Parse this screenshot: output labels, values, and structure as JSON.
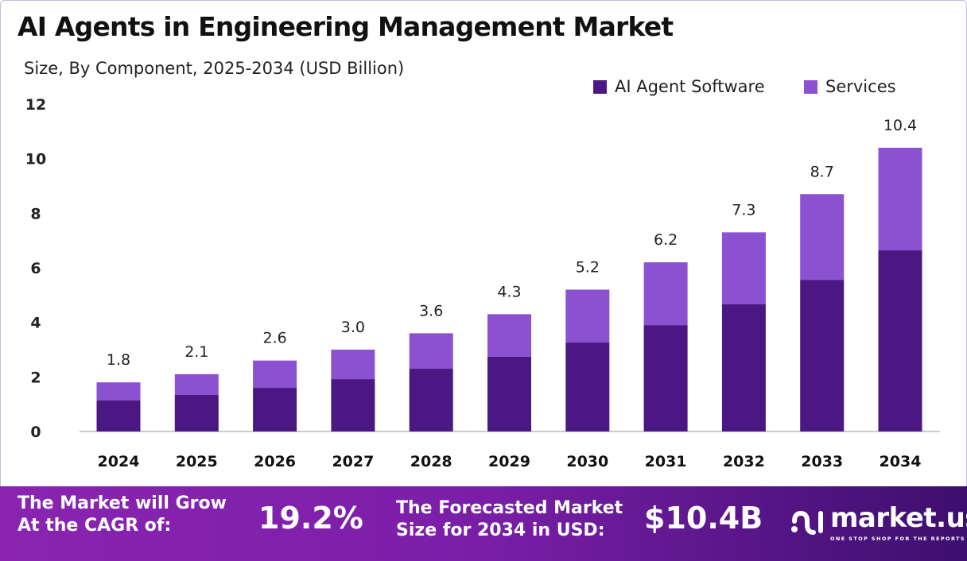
{
  "title": "AI Agents in Engineering Management Market",
  "subtitle": "Size, By Component, 2025-2034 (USD Billion)",
  "chart_data": {
    "type": "bar",
    "stacked": true,
    "categories": [
      "2024",
      "2025",
      "2026",
      "2027",
      "2028",
      "2029",
      "2030",
      "2031",
      "2032",
      "2033",
      "2034"
    ],
    "series": [
      {
        "name": "AI Agent Software",
        "color": "#4b1782",
        "values": [
          1.14,
          1.34,
          1.6,
          1.92,
          2.3,
          2.74,
          3.26,
          3.9,
          4.66,
          5.56,
          6.64
        ]
      },
      {
        "name": "Services",
        "color": "#8b51d1",
        "values": [
          0.66,
          0.76,
          1.0,
          1.08,
          1.3,
          1.56,
          1.94,
          2.3,
          2.64,
          3.14,
          3.76
        ]
      }
    ],
    "totals": [
      "1.8",
      "2.1",
      "2.6",
      "3.0",
      "3.6",
      "4.3",
      "5.2",
      "6.2",
      "7.3",
      "8.7",
      "10.4"
    ],
    "ylim": [
      0,
      12
    ],
    "yticks": [
      "0",
      "2",
      "4",
      "6",
      "8",
      "10",
      "12"
    ],
    "grid": false,
    "legend": "top-right"
  },
  "banner": {
    "cagr_label": "The Market will Grow At the CAGR of:",
    "cagr_line1": "The Market will Grow",
    "cagr_line2": "At the CAGR of:",
    "cagr_value": "19.2%",
    "forecast_line1": "The Forecasted Market",
    "forecast_line2": "Size for 2034 in USD:",
    "forecast_value": "$10.4B",
    "logo_name": "market.us",
    "logo_tagline": "ONE STOP SHOP FOR THE REPORTS"
  }
}
